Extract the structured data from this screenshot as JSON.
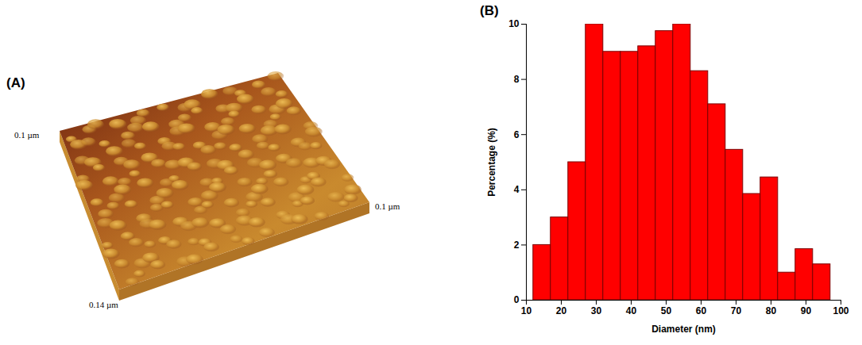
{
  "image_panel": {
    "panel_label": "(A)",
    "type": "afm_3d_image",
    "axis_labels": [
      "0.1 µm",
      "0.1 µm",
      "0.14 µm"
    ]
  },
  "chart_data": {
    "type": "histogram",
    "panel_label": "(B)",
    "bins": [
      12,
      17,
      22,
      27,
      32,
      37,
      42,
      47,
      52,
      57,
      62,
      67,
      72,
      77,
      82,
      87,
      92,
      97
    ],
    "values": [
      2,
      3,
      5,
      10,
      9,
      9,
      9.2,
      9.75,
      10,
      8.3,
      7.1,
      5.45,
      3.85,
      4.45,
      1,
      1.85,
      1.3
    ],
    "color": "#ff0000",
    "xlabel": "Diameter (nm)",
    "ylabel": "Percentage (%)",
    "xlim": [
      10,
      100
    ],
    "ylim": [
      0,
      10
    ],
    "xticks": [
      10,
      20,
      30,
      40,
      50,
      60,
      70,
      80,
      90,
      100
    ],
    "yticks": [
      0,
      2,
      4,
      6,
      8,
      10
    ]
  }
}
